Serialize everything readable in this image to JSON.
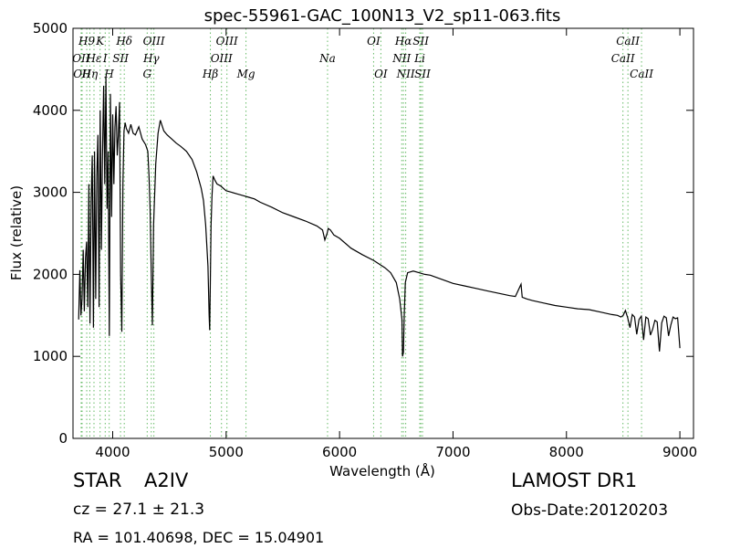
{
  "chart_data": {
    "type": "line",
    "title": "spec-55961-GAC_100N13_V2_sp11-063.fits",
    "xlabel": "Wavelength (Å)",
    "ylabel": "Flux (relative)",
    "xlim": [
      3650,
      9120
    ],
    "ylim": [
      0,
      5000
    ],
    "xticks": [
      4000,
      5000,
      6000,
      7000,
      8000,
      9000
    ],
    "yticks": [
      0,
      1000,
      2000,
      3000,
      4000,
      5000
    ],
    "grid": false,
    "line_color": "#000000",
    "marker_color": "#66bb66",
    "series": [
      {
        "x": [
          3700,
          3710,
          3720,
          3730,
          3740,
          3750,
          3760,
          3770,
          3780,
          3790,
          3800,
          3810,
          3820,
          3830,
          3840,
          3850,
          3860,
          3870,
          3880,
          3890,
          3900,
          3910,
          3920,
          3930,
          3940,
          3950,
          3960,
          3970,
          3980,
          3990,
          4000,
          4010,
          4020,
          4030,
          4040,
          4050,
          4060,
          4070,
          4080,
          4090,
          4100,
          4110,
          4120,
          4140,
          4160,
          4180,
          4200,
          4230,
          4260,
          4290,
          4310,
          4320,
          4330,
          4340,
          4350,
          4360,
          4380,
          4400,
          4420,
          4450,
          4480,
          4520,
          4560,
          4600,
          4650,
          4700,
          4740,
          4780,
          4800,
          4820,
          4840,
          4850,
          4855,
          4861,
          4867,
          4875,
          4885,
          4900,
          4920,
          4950,
          5000,
          5050,
          5100,
          5150,
          5200,
          5250,
          5300,
          5400,
          5500,
          5600,
          5700,
          5800,
          5850,
          5870,
          5890,
          5900,
          5920,
          5950,
          6000,
          6100,
          6200,
          6300,
          6400,
          6450,
          6500,
          6530,
          6550,
          6555,
          6563,
          6570,
          6580,
          6600,
          6650,
          6700,
          6750,
          6800,
          6900,
          7000,
          7100,
          7200,
          7300,
          7400,
          7500,
          7550,
          7600,
          7610,
          7650,
          7700,
          7800,
          7900,
          8000,
          8100,
          8200,
          8300,
          8400,
          8450,
          8480,
          8500,
          8520,
          8540,
          8560,
          8580,
          8600,
          8620,
          8640,
          8660,
          8680,
          8700,
          8720,
          8740,
          8760,
          8780,
          8800,
          8820,
          8840,
          8860,
          8880,
          8900,
          8920,
          8940,
          8960,
          8980,
          9000
        ],
        "y": [
          1450,
          2050,
          1500,
          1700,
          2300,
          1550,
          2200,
          2400,
          1600,
          3100,
          1400,
          2900,
          3450,
          1350,
          3500,
          1700,
          3200,
          3700,
          1600,
          4000,
          2300,
          3450,
          4300,
          3100,
          4400,
          2800,
          3500,
          1250,
          4200,
          2700,
          3950,
          3100,
          3800,
          4050,
          3450,
          3700,
          4100,
          2000,
          1300,
          3100,
          3750,
          3850,
          3780,
          3720,
          3830,
          3720,
          3700,
          3800,
          3650,
          3580,
          3500,
          3200,
          2800,
          2000,
          1380,
          2600,
          3350,
          3720,
          3880,
          3750,
          3700,
          3650,
          3600,
          3560,
          3500,
          3400,
          3250,
          3050,
          2900,
          2600,
          2100,
          1500,
          1320,
          1900,
          2600,
          2950,
          3200,
          3150,
          3100,
          3080,
          3020,
          3000,
          2980,
          2960,
          2940,
          2920,
          2880,
          2820,
          2750,
          2700,
          2650,
          2590,
          2540,
          2420,
          2500,
          2560,
          2540,
          2480,
          2440,
          2320,
          2240,
          2170,
          2080,
          2020,
          1900,
          1700,
          1450,
          1000,
          1050,
          1500,
          1900,
          2020,
          2040,
          2020,
          2000,
          1990,
          1940,
          1890,
          1860,
          1830,
          1800,
          1770,
          1740,
          1730,
          1880,
          1720,
          1700,
          1680,
          1650,
          1620,
          1600,
          1580,
          1570,
          1540,
          1510,
          1500,
          1480,
          1500,
          1560,
          1470,
          1350,
          1510,
          1480,
          1270,
          1450,
          1490,
          1200,
          1480,
          1460,
          1260,
          1330,
          1440,
          1420,
          1060,
          1410,
          1490,
          1470,
          1250,
          1380,
          1480,
          1460,
          1470,
          1100
        ]
      }
    ],
    "lines": [
      {
        "x": 3722,
        "label": "OII",
        "row": 1
      },
      {
        "x": 3730,
        "label": "OII",
        "row": 2
      },
      {
        "x": 3771,
        "label": "H9",
        "row": 0
      },
      {
        "x": 3798,
        "label": "Hη",
        "row": 2
      },
      {
        "x": 3835,
        "label": "Hε",
        "row": 1
      },
      {
        "x": 3889,
        "label": "K",
        "row": 0
      },
      {
        "x": 3934,
        "label": "I",
        "row": 1
      },
      {
        "x": 3969,
        "label": "H",
        "row": 2
      },
      {
        "x": 4069,
        "label": "SII",
        "row": 1
      },
      {
        "x": 4102,
        "label": "Hδ",
        "row": 0
      },
      {
        "x": 4304,
        "label": "G",
        "row": 2
      },
      {
        "x": 4340,
        "label": "Hγ",
        "row": 1
      },
      {
        "x": 4363,
        "label": "OIII",
        "row": 0
      },
      {
        "x": 4861,
        "label": "Hβ",
        "row": 2
      },
      {
        "x": 4959,
        "label": "OIII",
        "row": 1
      },
      {
        "x": 5007,
        "label": "OIII",
        "row": 0
      },
      {
        "x": 5175,
        "label": "Mg",
        "row": 2
      },
      {
        "x": 5894,
        "label": "Na",
        "row": 1
      },
      {
        "x": 6300,
        "label": "OI",
        "row": 0
      },
      {
        "x": 6364,
        "label": "OI",
        "row": 2
      },
      {
        "x": 6548,
        "label": "NII",
        "row": 1
      },
      {
        "x": 6563,
        "label": "Hα",
        "row": 0
      },
      {
        "x": 6583,
        "label": "NII",
        "row": 2
      },
      {
        "x": 6707,
        "label": "Li",
        "row": 1
      },
      {
        "x": 6716,
        "label": "SII",
        "row": 0
      },
      {
        "x": 6731,
        "label": "SII",
        "row": 2
      },
      {
        "x": 8498,
        "label": "CaII",
        "row": 1
      },
      {
        "x": 8542,
        "label": "CaII",
        "row": 0
      },
      {
        "x": 8662,
        "label": "CaII",
        "row": 2
      }
    ]
  },
  "info": {
    "class_label": "STAR",
    "subclass": "A2IV",
    "survey": "LAMOST DR1",
    "cz_text": "cz = 27.1 ± 21.3",
    "obs_date": "Obs-Date:20120203",
    "coords": "RA = 101.40698, DEC = 15.04901"
  }
}
